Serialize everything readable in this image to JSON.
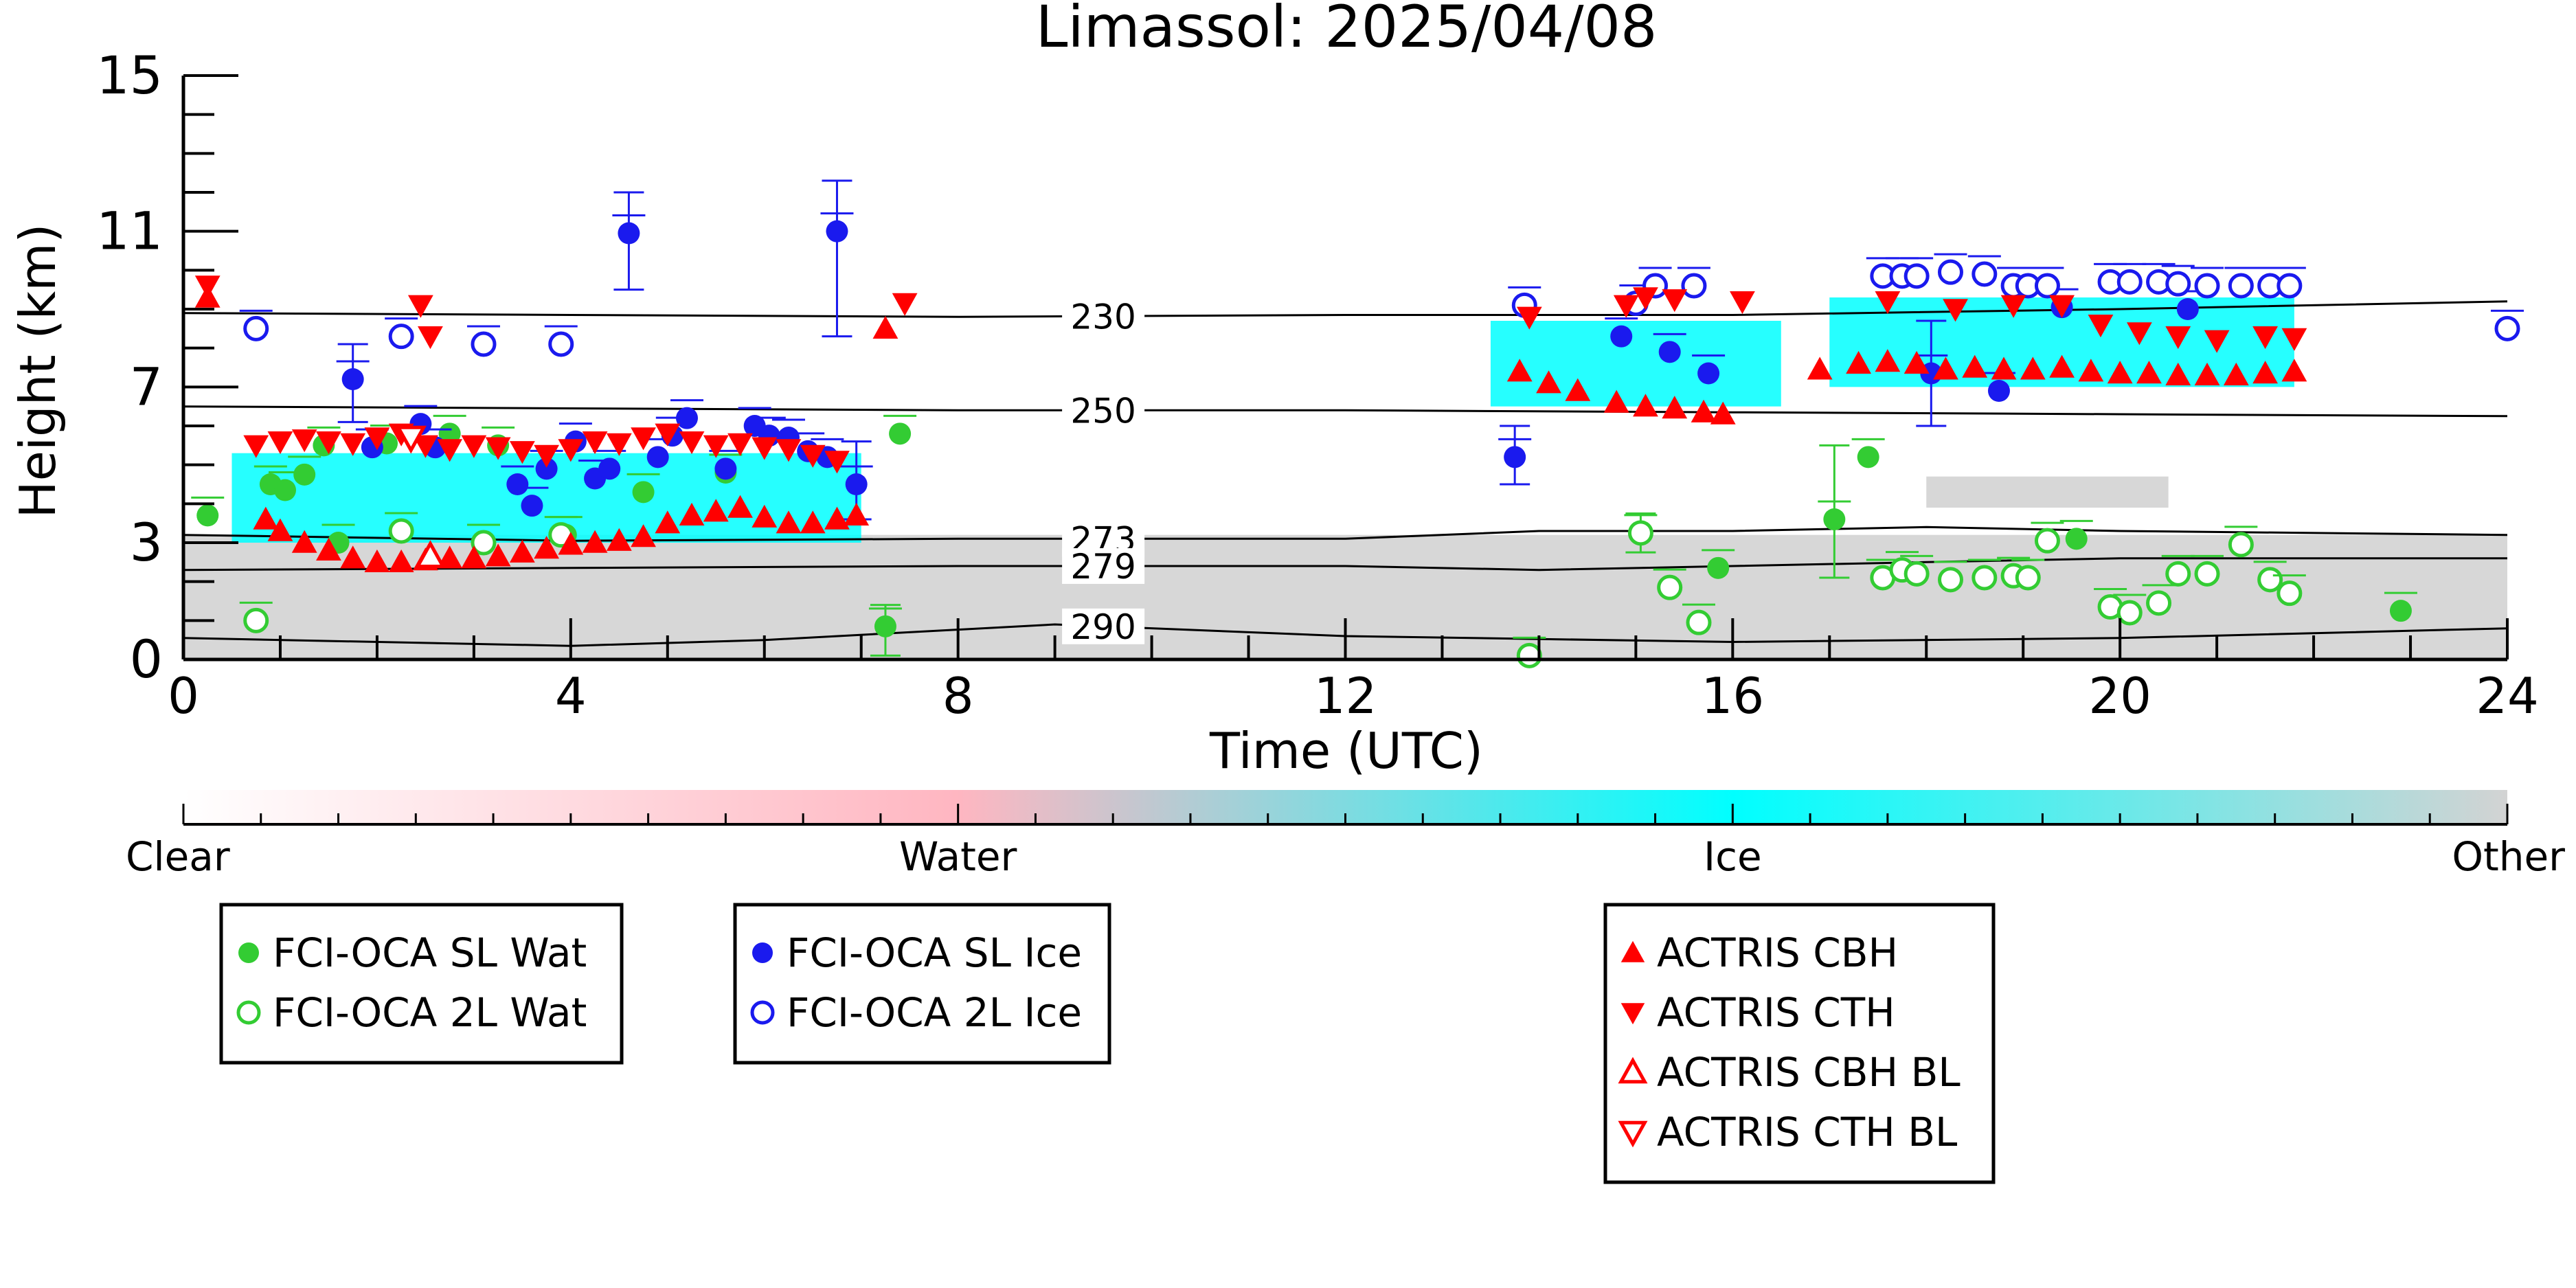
{
  "chart_data": {
    "type": "scatter",
    "title": "Limassol: 2025/04/08",
    "xlabel": "Time (UTC)",
    "ylabel": "Height (km)",
    "xlim": [
      0,
      24
    ],
    "ylim": [
      0,
      15
    ],
    "x_ticks": [
      0,
      4,
      8,
      12,
      16,
      20,
      24
    ],
    "y_ticks": [
      0,
      3,
      7,
      11,
      15
    ],
    "x_tick_labels": [
      "0",
      "4",
      "8",
      "12",
      "16",
      "20",
      "24"
    ],
    "y_tick_labels": [
      "0",
      "3",
      "7",
      "11",
      "15"
    ],
    "grid": false,
    "colorbar": {
      "labels": [
        "Clear",
        "Water",
        "Ice",
        "Other"
      ],
      "colors": [
        "#ffffff",
        "#ffb6c1",
        "#00ffff",
        "#d3d3d3"
      ]
    },
    "cloud_mask_regions": [
      {
        "class": "Other",
        "color": "#d3d3d3",
        "x_start": 0,
        "x_end": 24,
        "base": 0,
        "top": 3.2
      },
      {
        "class": "Other",
        "color": "#d3d3d3",
        "x_start": 18.0,
        "x_end": 20.5,
        "base": 3.9,
        "top": 4.7
      },
      {
        "class": "Ice",
        "color": "#00ffff",
        "x_start": 0.5,
        "x_end": 7.0,
        "base": 3.0,
        "top": 5.3
      },
      {
        "class": "Ice",
        "color": "#00ffff",
        "x_start": 13.5,
        "x_end": 16.5,
        "base": 6.5,
        "top": 8.7
      },
      {
        "class": "Ice",
        "color": "#00ffff",
        "x_start": 17.0,
        "x_end": 21.8,
        "base": 7.0,
        "top": 9.3
      }
    ],
    "contours": [
      {
        "label": "230",
        "label_x": 9.5,
        "points": [
          [
            0,
            8.9
          ],
          [
            4,
            8.85
          ],
          [
            8,
            8.8
          ],
          [
            12,
            8.85
          ],
          [
            16,
            8.85
          ],
          [
            20,
            9.0
          ],
          [
            24,
            9.2
          ]
        ]
      },
      {
        "label": "250",
        "label_x": 9.5,
        "points": [
          [
            0,
            6.5
          ],
          [
            4,
            6.45
          ],
          [
            8,
            6.4
          ],
          [
            12,
            6.4
          ],
          [
            16,
            6.35
          ],
          [
            20,
            6.3
          ],
          [
            24,
            6.25
          ]
        ]
      },
      {
        "label": "273",
        "label_x": 9.5,
        "points": [
          [
            0,
            3.2
          ],
          [
            4,
            3.05
          ],
          [
            8,
            3.1
          ],
          [
            12,
            3.1
          ],
          [
            14,
            3.3
          ],
          [
            16,
            3.3
          ],
          [
            18,
            3.4
          ],
          [
            20,
            3.3
          ],
          [
            24,
            3.2
          ]
        ]
      },
      {
        "label": "279",
        "label_x": 9.5,
        "points": [
          [
            0,
            2.3
          ],
          [
            4,
            2.35
          ],
          [
            8,
            2.4
          ],
          [
            12,
            2.4
          ],
          [
            14,
            2.3
          ],
          [
            16,
            2.4
          ],
          [
            18,
            2.5
          ],
          [
            20,
            2.6
          ],
          [
            24,
            2.6
          ]
        ]
      },
      {
        "label": "290",
        "label_x": 9.5,
        "points": [
          [
            0,
            0.55
          ],
          [
            4,
            0.35
          ],
          [
            6,
            0.5
          ],
          [
            9,
            0.9
          ],
          [
            12,
            0.6
          ],
          [
            16,
            0.45
          ],
          [
            20,
            0.55
          ],
          [
            24,
            0.8
          ]
        ]
      }
    ],
    "series": [
      {
        "name": "FCI-OCA SL Wat",
        "color": "#33cc33",
        "marker": "circle-filled",
        "points": [
          [
            0.25,
            3.7
          ],
          [
            0.9,
            4.5
          ],
          [
            1.05,
            4.35
          ],
          [
            1.25,
            4.75
          ],
          [
            1.45,
            5.5
          ],
          [
            1.6,
            3.0
          ],
          [
            2.1,
            5.55
          ],
          [
            2.75,
            5.8
          ],
          [
            3.25,
            5.5
          ],
          [
            3.95,
            3.2
          ],
          [
            4.75,
            4.3
          ],
          [
            5.6,
            4.8
          ],
          [
            7.25,
            0.85
          ],
          [
            7.4,
            5.8
          ],
          [
            17.05,
            3.6
          ],
          [
            17.4,
            5.2
          ],
          [
            15.85,
            2.35
          ],
          [
            19.55,
            3.1
          ],
          [
            22.9,
            1.25
          ]
        ]
      },
      {
        "name": "FCI-OCA 2L Wat",
        "color": "#33cc33",
        "marker": "circle-open",
        "points": [
          [
            0.75,
            1.0
          ],
          [
            2.25,
            3.3
          ],
          [
            3.1,
            3.0
          ],
          [
            3.9,
            3.2
          ],
          [
            15.05,
            3.25
          ],
          [
            15.35,
            1.85
          ],
          [
            15.65,
            0.95
          ],
          [
            13.9,
            0.1
          ],
          [
            17.55,
            2.1
          ],
          [
            17.75,
            2.3
          ],
          [
            17.9,
            2.2
          ],
          [
            18.25,
            2.05
          ],
          [
            18.6,
            2.1
          ],
          [
            18.9,
            2.15
          ],
          [
            19.05,
            2.1
          ],
          [
            19.25,
            3.05
          ],
          [
            19.9,
            1.35
          ],
          [
            20.1,
            1.2
          ],
          [
            20.4,
            1.45
          ],
          [
            20.6,
            2.2
          ],
          [
            20.9,
            2.2
          ],
          [
            21.25,
            2.95
          ],
          [
            21.55,
            2.05
          ],
          [
            21.75,
            1.7
          ]
        ]
      },
      {
        "name": "FCI-OCA SL Ice",
        "color": "#1a1aee",
        "marker": "circle-filled",
        "points": [
          [
            1.75,
            7.2
          ],
          [
            1.95,
            5.45
          ],
          [
            2.45,
            6.05
          ],
          [
            2.6,
            5.45
          ],
          [
            3.45,
            4.5
          ],
          [
            3.6,
            3.95
          ],
          [
            3.75,
            4.9
          ],
          [
            4.05,
            5.6
          ],
          [
            4.25,
            4.65
          ],
          [
            4.4,
            4.9
          ],
          [
            4.6,
            10.95
          ],
          [
            4.9,
            5.2
          ],
          [
            5.05,
            5.75
          ],
          [
            5.2,
            6.2
          ],
          [
            5.6,
            4.9
          ],
          [
            5.9,
            6.0
          ],
          [
            6.05,
            5.75
          ],
          [
            6.25,
            5.7
          ],
          [
            6.45,
            5.35
          ],
          [
            6.65,
            5.2
          ],
          [
            6.75,
            11.0
          ],
          [
            6.95,
            4.5
          ],
          [
            13.75,
            5.2
          ],
          [
            14.85,
            8.3
          ],
          [
            15.35,
            7.9
          ],
          [
            15.75,
            7.35
          ],
          [
            18.05,
            7.35
          ],
          [
            18.75,
            6.9
          ],
          [
            19.4,
            9.05
          ],
          [
            20.7,
            9.0
          ]
        ]
      },
      {
        "name": "FCI-OCA 2L Ice",
        "color": "#1a1aee",
        "marker": "circle-open",
        "points": [
          [
            0.75,
            8.5
          ],
          [
            2.25,
            8.3
          ],
          [
            3.1,
            8.1
          ],
          [
            3.9,
            8.1
          ],
          [
            13.85,
            9.1
          ],
          [
            15.0,
            9.15
          ],
          [
            15.2,
            9.6
          ],
          [
            15.6,
            9.6
          ],
          [
            17.55,
            9.85
          ],
          [
            17.75,
            9.85
          ],
          [
            17.9,
            9.85
          ],
          [
            18.25,
            9.95
          ],
          [
            18.6,
            9.9
          ],
          [
            18.9,
            9.6
          ],
          [
            19.05,
            9.6
          ],
          [
            19.25,
            9.6
          ],
          [
            19.9,
            9.7
          ],
          [
            20.1,
            9.7
          ],
          [
            20.4,
            9.7
          ],
          [
            20.6,
            9.65
          ],
          [
            20.9,
            9.6
          ],
          [
            21.25,
            9.6
          ],
          [
            21.55,
            9.6
          ],
          [
            21.75,
            9.6
          ],
          [
            24.0,
            8.5
          ]
        ]
      },
      {
        "name": "ACTRIS CBH",
        "color": "#ff0000",
        "marker": "triangle-up-filled",
        "points": [
          [
            0.25,
            9.3
          ],
          [
            0.85,
            3.6
          ],
          [
            1.0,
            3.3
          ],
          [
            1.25,
            3.0
          ],
          [
            1.5,
            2.8
          ],
          [
            1.75,
            2.6
          ],
          [
            2.0,
            2.5
          ],
          [
            2.25,
            2.5
          ],
          [
            2.5,
            2.55
          ],
          [
            2.75,
            2.6
          ],
          [
            3.0,
            2.6
          ],
          [
            3.25,
            2.65
          ],
          [
            3.5,
            2.75
          ],
          [
            3.75,
            2.85
          ],
          [
            4.0,
            2.95
          ],
          [
            4.25,
            3.0
          ],
          [
            4.5,
            3.05
          ],
          [
            4.75,
            3.15
          ],
          [
            5.0,
            3.5
          ],
          [
            5.25,
            3.7
          ],
          [
            5.5,
            3.8
          ],
          [
            5.75,
            3.9
          ],
          [
            6.0,
            3.65
          ],
          [
            6.25,
            3.5
          ],
          [
            6.5,
            3.5
          ],
          [
            6.75,
            3.6
          ],
          [
            6.95,
            3.7
          ],
          [
            7.25,
            8.5
          ],
          [
            13.8,
            7.4
          ],
          [
            14.1,
            7.1
          ],
          [
            14.4,
            6.9
          ],
          [
            14.8,
            6.6
          ],
          [
            15.1,
            6.5
          ],
          [
            15.4,
            6.45
          ],
          [
            15.7,
            6.35
          ],
          [
            15.9,
            6.3
          ],
          [
            16.9,
            7.45
          ],
          [
            17.3,
            7.6
          ],
          [
            17.6,
            7.65
          ],
          [
            17.9,
            7.6
          ],
          [
            18.2,
            7.45
          ],
          [
            18.5,
            7.5
          ],
          [
            18.8,
            7.45
          ],
          [
            19.1,
            7.45
          ],
          [
            19.4,
            7.5
          ],
          [
            19.7,
            7.4
          ],
          [
            20.0,
            7.35
          ],
          [
            20.3,
            7.35
          ],
          [
            20.6,
            7.3
          ],
          [
            20.9,
            7.3
          ],
          [
            21.2,
            7.3
          ],
          [
            21.5,
            7.35
          ],
          [
            21.8,
            7.4
          ]
        ]
      },
      {
        "name": "ACTRIS CTH",
        "color": "#ff0000",
        "marker": "triangle-down-filled",
        "points": [
          [
            0.25,
            9.6
          ],
          [
            0.75,
            5.5
          ],
          [
            1.0,
            5.6
          ],
          [
            1.25,
            5.65
          ],
          [
            1.5,
            5.6
          ],
          [
            1.75,
            5.55
          ],
          [
            2.0,
            5.7
          ],
          [
            2.25,
            5.8
          ],
          [
            2.5,
            5.5
          ],
          [
            2.75,
            5.4
          ],
          [
            3.0,
            5.5
          ],
          [
            3.25,
            5.45
          ],
          [
            3.5,
            5.35
          ],
          [
            3.75,
            5.25
          ],
          [
            4.0,
            5.4
          ],
          [
            4.25,
            5.6
          ],
          [
            4.5,
            5.55
          ],
          [
            4.75,
            5.7
          ],
          [
            5.0,
            5.8
          ],
          [
            5.25,
            5.6
          ],
          [
            5.5,
            5.5
          ],
          [
            5.75,
            5.55
          ],
          [
            6.0,
            5.45
          ],
          [
            6.25,
            5.4
          ],
          [
            6.5,
            5.25
          ],
          [
            6.75,
            5.1
          ],
          [
            2.45,
            9.1
          ],
          [
            2.55,
            8.3
          ],
          [
            7.45,
            9.15
          ],
          [
            13.9,
            8.8
          ],
          [
            14.9,
            9.1
          ],
          [
            15.1,
            9.3
          ],
          [
            15.4,
            9.25
          ],
          [
            16.1,
            9.2
          ],
          [
            17.6,
            9.2
          ],
          [
            18.3,
            9.0
          ],
          [
            18.9,
            9.1
          ],
          [
            19.4,
            9.1
          ],
          [
            19.8,
            8.6
          ],
          [
            20.2,
            8.4
          ],
          [
            20.6,
            8.3
          ],
          [
            21.0,
            8.2
          ],
          [
            21.5,
            8.3
          ],
          [
            21.8,
            8.25
          ]
        ]
      },
      {
        "name": "ACTRIS CBH BL",
        "color": "#ff0000",
        "marker": "triangle-up-open",
        "points": [
          [
            2.55,
            2.65
          ]
        ]
      },
      {
        "name": "ACTRIS CTH BL",
        "color": "#ff0000",
        "marker": "triangle-down-open",
        "points": [
          [
            2.35,
            5.7
          ]
        ]
      }
    ],
    "error_bars": [
      {
        "x": 4.6,
        "low": 9.5,
        "high": 12.0,
        "color": "#1a1aee"
      },
      {
        "x": 6.75,
        "low": 8.3,
        "high": 12.3,
        "color": "#1a1aee"
      },
      {
        "x": 1.75,
        "low": 6.1,
        "high": 8.1,
        "color": "#1a1aee"
      },
      {
        "x": 6.95,
        "low": 3.6,
        "high": 5.6,
        "color": "#1a1aee"
      },
      {
        "x": 13.75,
        "low": 4.5,
        "high": 6.0,
        "color": "#1a1aee"
      },
      {
        "x": 18.05,
        "low": 6.0,
        "high": 8.7,
        "color": "#1a1aee"
      },
      {
        "x": 17.05,
        "low": 2.1,
        "high": 5.5,
        "color": "#33cc33"
      },
      {
        "x": 7.25,
        "low": 0.1,
        "high": 1.4,
        "color": "#33cc33"
      },
      {
        "x": 15.05,
        "low": 2.75,
        "high": 3.75,
        "color": "#33cc33"
      }
    ],
    "legends": [
      {
        "entries": [
          "FCI-OCA SL Wat",
          "FCI-OCA 2L Wat"
        ]
      },
      {
        "entries": [
          "FCI-OCA SL Ice",
          "FCI-OCA 2L Ice"
        ]
      },
      {
        "entries": [
          "ACTRIS CBH",
          "ACTRIS CTH",
          "ACTRIS CBH BL",
          "ACTRIS CTH BL"
        ]
      }
    ]
  }
}
